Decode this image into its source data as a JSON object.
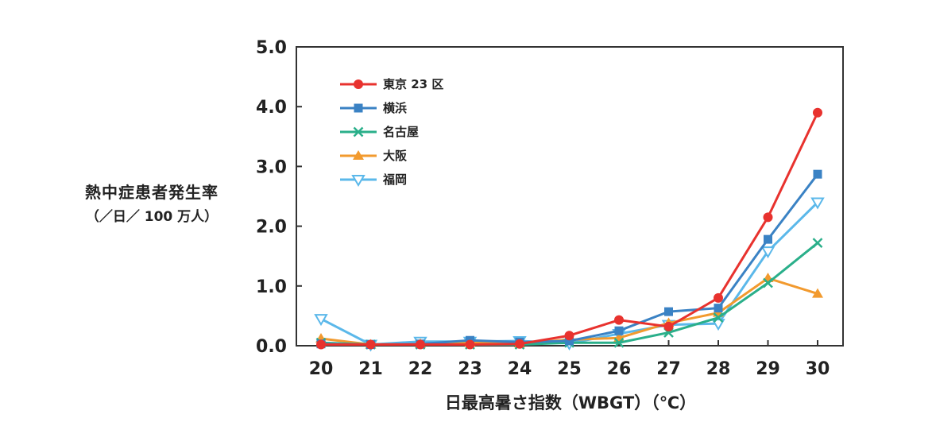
{
  "chart_data": {
    "type": "line",
    "title": "",
    "ylabel": "熱中症患者発生率",
    "ylabel_unit": "（／日／ 100 万人）",
    "xlabel": "日最高暑さ指数（WBGT）（℃）",
    "x": [
      20,
      21,
      22,
      23,
      24,
      25,
      26,
      27,
      28,
      29,
      30
    ],
    "x_tick_labels": [
      "20",
      "21",
      "22",
      "23",
      "24",
      "25",
      "26",
      "27",
      "28",
      "29",
      "30"
    ],
    "ylim": [
      0,
      5
    ],
    "y_tick_labels": [
      "0.0",
      "1.0",
      "2.0",
      "3.0",
      "4.0",
      "5.0"
    ],
    "grid": false,
    "legend_position": "top-left",
    "series": [
      {
        "name": "東京 23 区",
        "color": "#e8322e",
        "marker": "circle",
        "values": [
          0.02,
          0.02,
          0.02,
          0.02,
          0.03,
          0.17,
          0.43,
          0.32,
          0.8,
          2.15,
          3.9
        ]
      },
      {
        "name": "横浜",
        "color": "#3a82c4",
        "marker": "square",
        "values": [
          0.03,
          0.02,
          0.03,
          0.09,
          0.06,
          0.08,
          0.25,
          0.57,
          0.63,
          1.78,
          2.87
        ]
      },
      {
        "name": "名古屋",
        "color": "#2aaf8a",
        "marker": "x",
        "values": [
          0.05,
          0.02,
          0.02,
          0.02,
          0.02,
          0.05,
          0.05,
          0.22,
          0.47,
          1.05,
          1.72
        ]
      },
      {
        "name": "大阪",
        "color": "#f29a2e",
        "marker": "triangle-up",
        "values": [
          0.12,
          0.02,
          0.03,
          0.05,
          0.04,
          0.1,
          0.13,
          0.38,
          0.55,
          1.13,
          0.87
        ]
      },
      {
        "name": "福岡",
        "color": "#5bb8ea",
        "marker": "triangle-down",
        "values": [
          0.45,
          0.02,
          0.07,
          0.07,
          0.08,
          0.04,
          0.2,
          0.35,
          0.37,
          1.58,
          2.4
        ]
      }
    ]
  }
}
